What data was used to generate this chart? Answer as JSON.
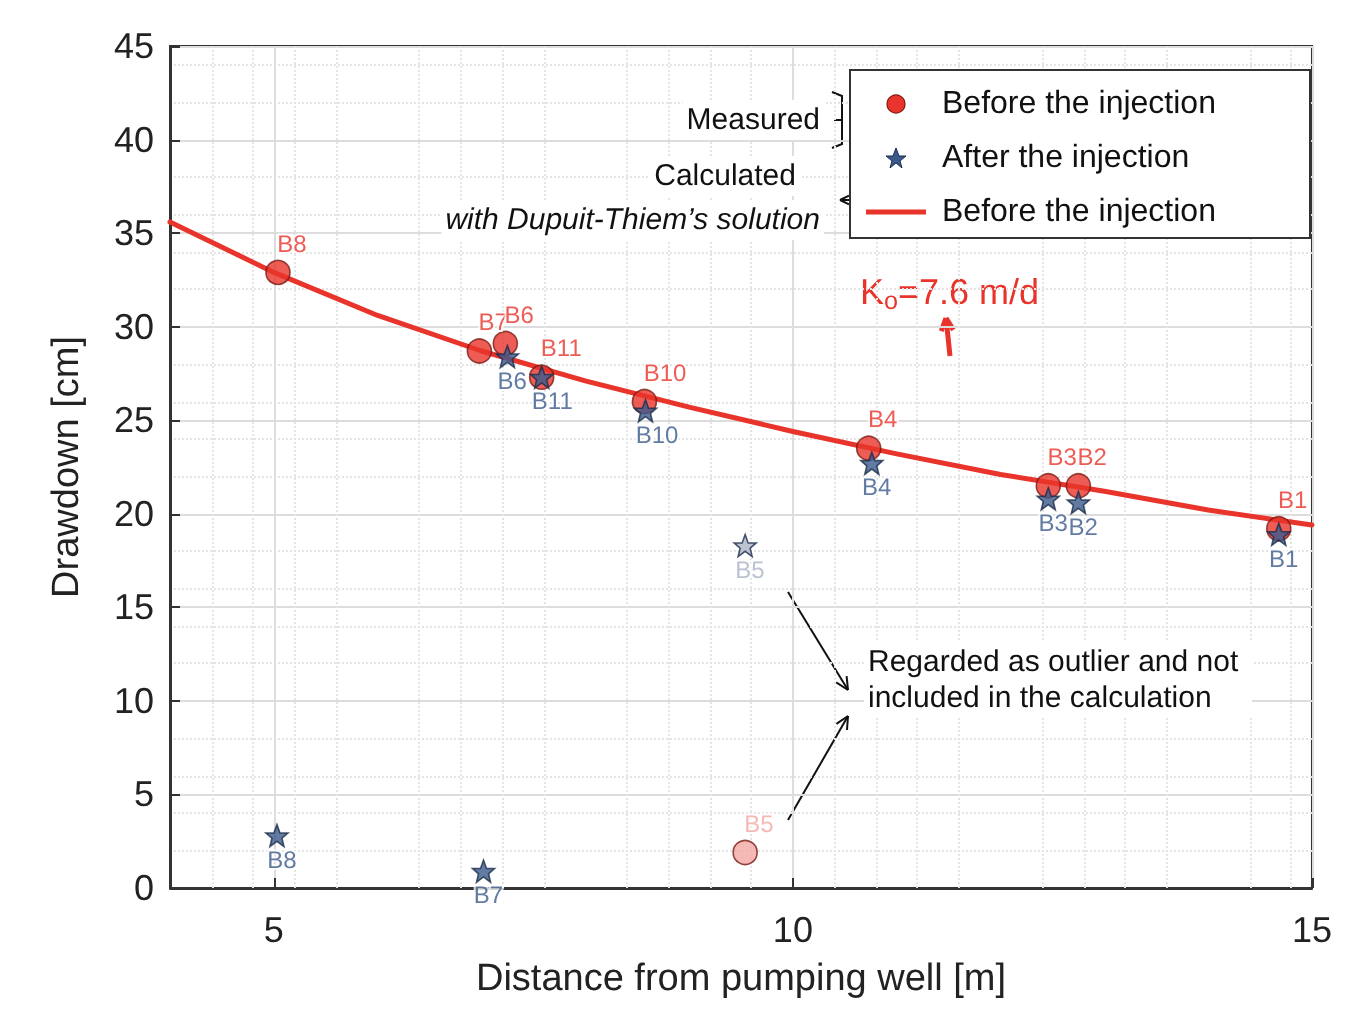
{
  "chart_data": {
    "type": "scatter",
    "xlabel": "Distance from pumping well [m]",
    "ylabel": "Drawdown [cm]",
    "xlim": [
      4,
      15
    ],
    "xticks": [
      5,
      10,
      15
    ],
    "ylim": [
      0,
      45
    ],
    "yticks": [
      0,
      5,
      10,
      15,
      20,
      25,
      30,
      35,
      40,
      45
    ],
    "grid": true,
    "legend": "top right",
    "series": [
      {
        "name": "Before the injection",
        "type": "line",
        "marker": "none",
        "color": "#e8342a",
        "x": [
          4,
          5,
          6,
          7,
          8,
          9,
          10,
          11,
          12,
          13,
          14,
          15
        ],
        "values": [
          35.6,
          32.9,
          30.6,
          28.7,
          27.1,
          25.7,
          24.4,
          23.2,
          22.1,
          21.2,
          20.2,
          19.4
        ]
      },
      {
        "name": "Before the injection",
        "marker": "circle",
        "color": "#e8342a",
        "x": [
          5.04,
          6.98,
          7.23,
          7.58,
          8.57,
          9.54,
          10.73,
          12.46,
          12.75,
          14.68
        ],
        "values": [
          32.9,
          28.7,
          29.1,
          27.3,
          26.0,
          1.9,
          23.5,
          21.5,
          21.5,
          19.2
        ],
        "colors": [
          "#e8342a",
          "#e8342a",
          "#e8342a",
          "#e8342a",
          "#e8342a",
          "#f2a8a4",
          "#e8342a",
          "#e8342a",
          "#e8342a",
          "#e8342a"
        ],
        "value_labels": [
          "B8",
          "B7",
          "B6",
          "B11",
          "B10",
          "B5",
          "B4",
          "B3",
          "B2",
          "B1"
        ]
      },
      {
        "name": "After the injection",
        "marker": "star",
        "color": "#3b5a8c",
        "x": [
          5.03,
          7.02,
          7.25,
          7.58,
          8.58,
          9.54,
          10.76,
          12.46,
          12.75,
          14.68
        ],
        "values": [
          2.8,
          0.9,
          28.4,
          27.3,
          25.5,
          18.3,
          22.7,
          20.8,
          20.6,
          18.9
        ],
        "colors": [
          "#3b5a8c",
          "#3b5a8c",
          "#3b5a8c",
          "#3b5a8c",
          "#3b5a8c",
          "#aab4c8",
          "#3b5a8c",
          "#3b5a8c",
          "#3b5a8c",
          "#3b5a8c"
        ],
        "value_labels": [
          "B8",
          "B7",
          "B6",
          "B11",
          "B10",
          "B5",
          "B4",
          "B3",
          "B2",
          "B1"
        ]
      }
    ],
    "annotations": [
      "Measured",
      "Calculated",
      "with Dupuit-Thiem’s solution",
      "K$_{o}$=7.6 m/d",
      "Regarded as outlier and not included in the calculation"
    ]
  }
}
